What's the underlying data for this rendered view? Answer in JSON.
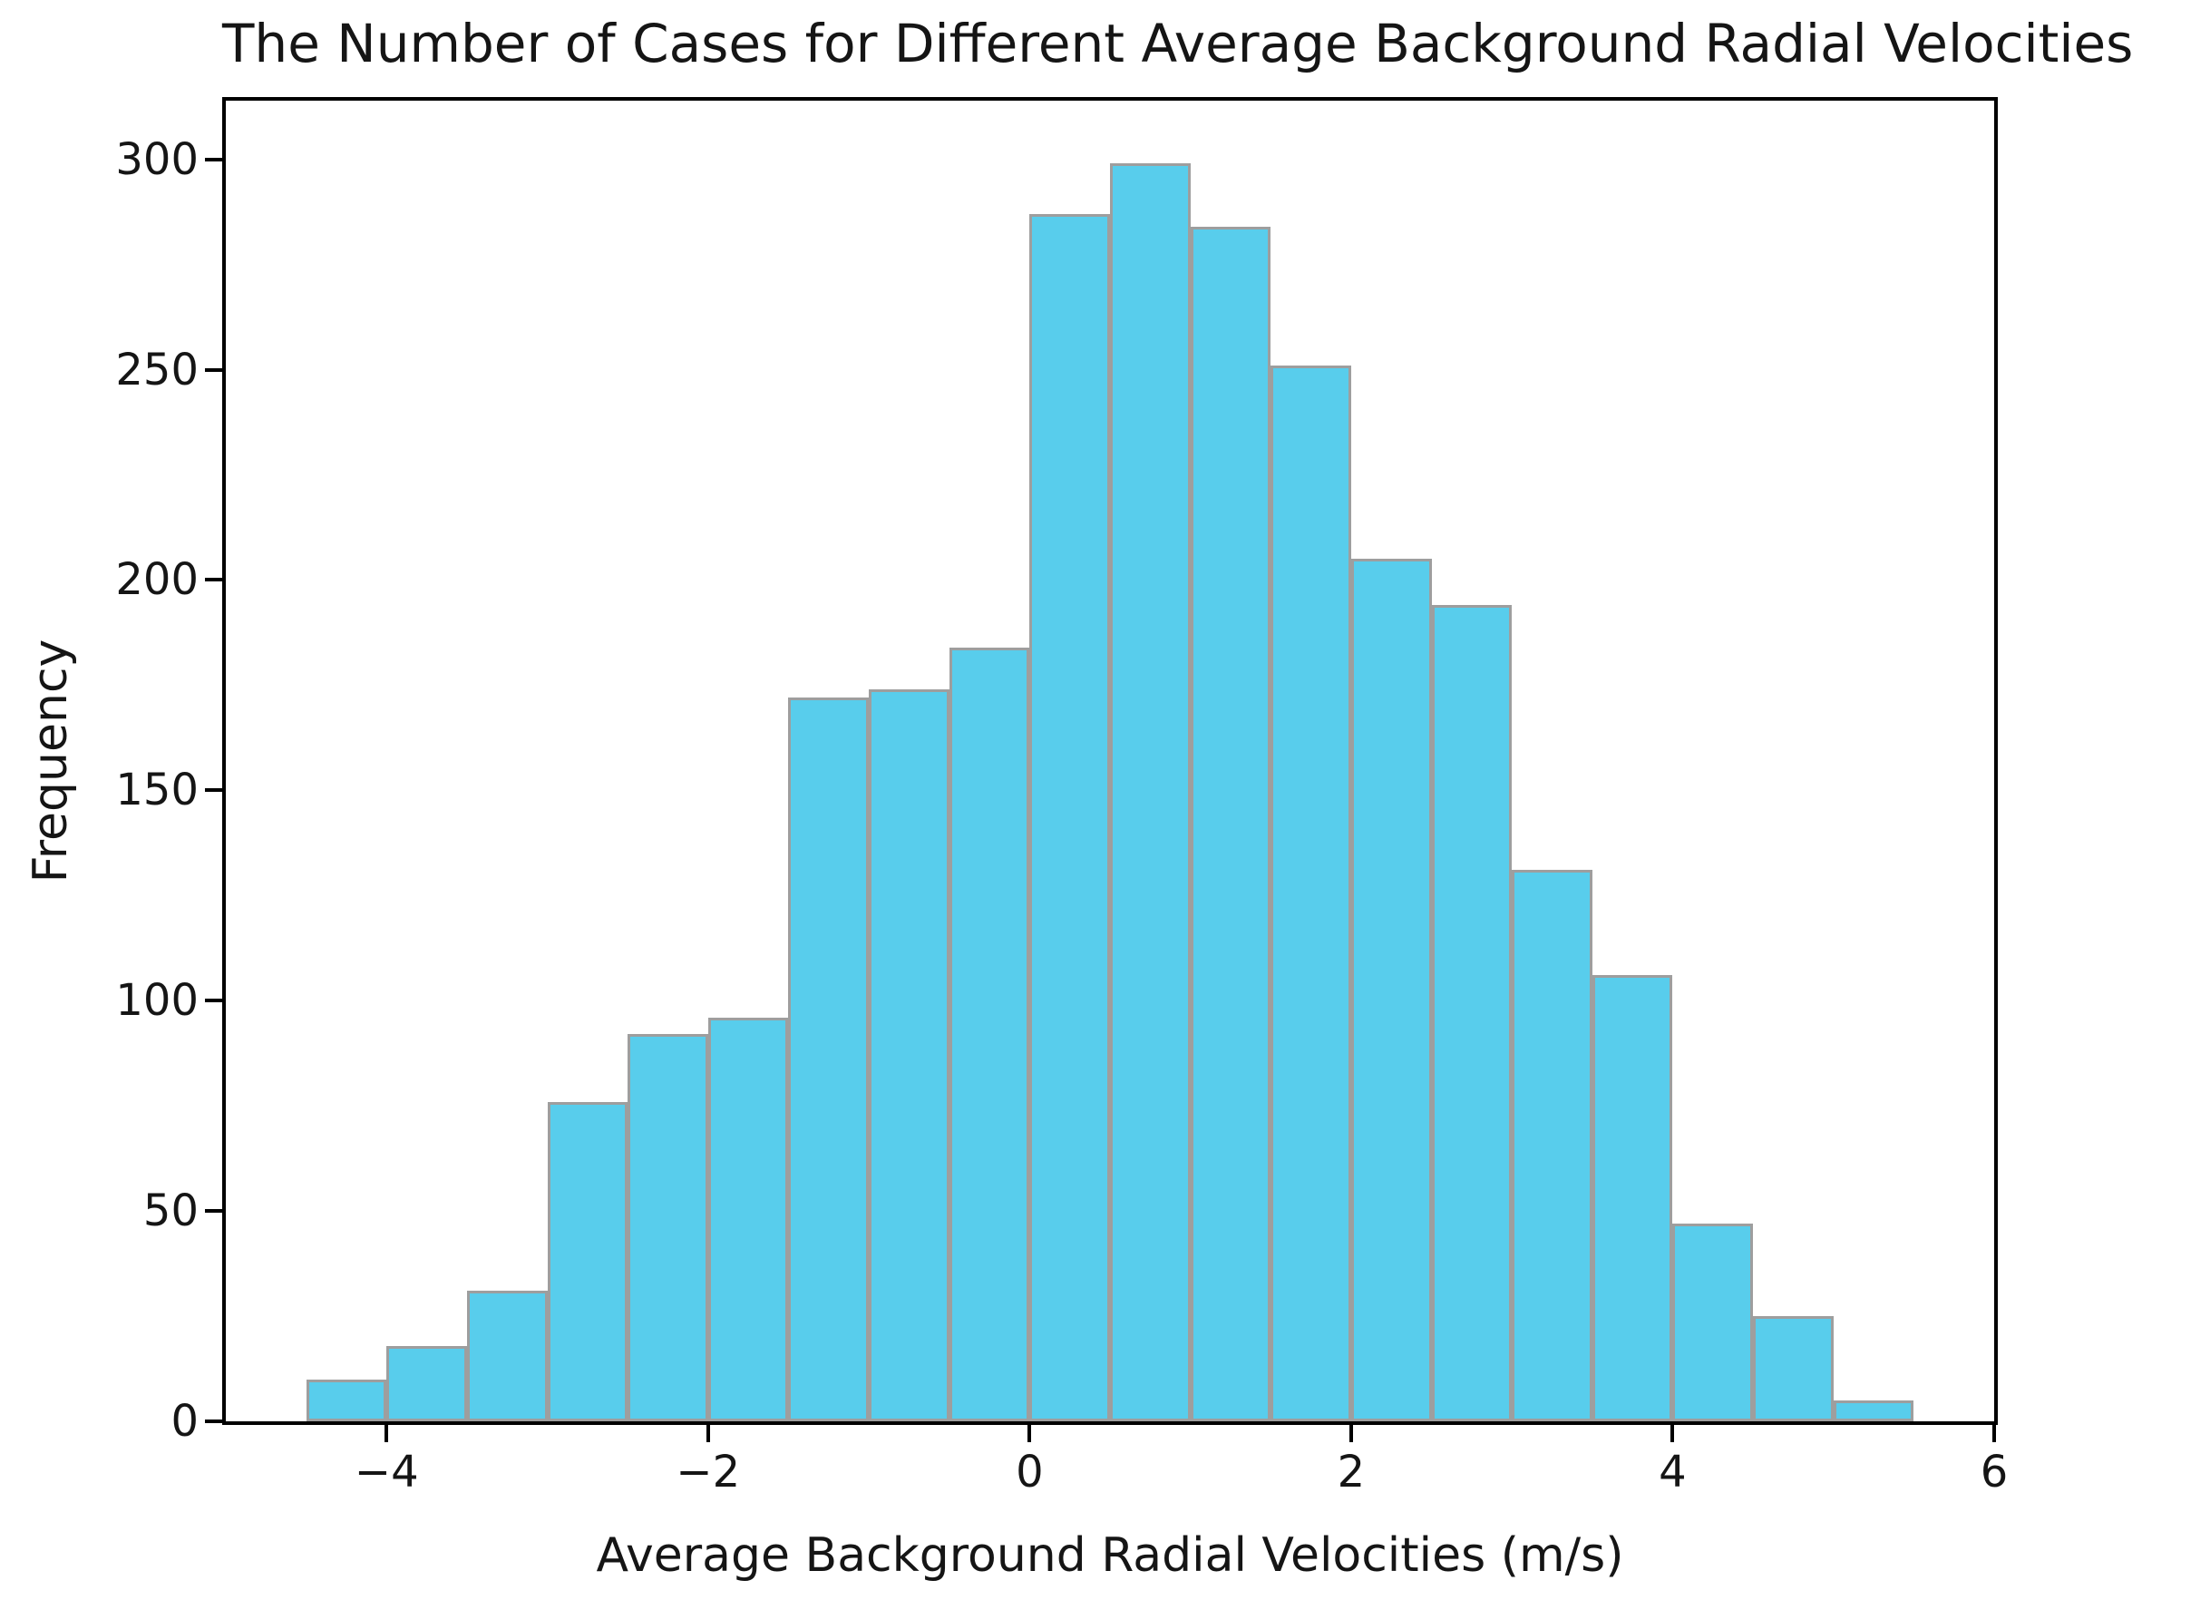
{
  "figure": {
    "background_color": "#ffffff",
    "text_color": "#151515",
    "spine_color": "#000000"
  },
  "chart_data": {
    "type": "bar",
    "subtype": "histogram",
    "title": "The Number of Cases for Different Average Background Radial Velocities",
    "xlabel": "Average Background Radial Velocities (m/s)",
    "ylabel": "Frequency",
    "bin_edges": [
      -4.5,
      -4.0,
      -3.5,
      -3.0,
      -2.5,
      -2.0,
      -1.5,
      -1.0,
      -0.5,
      0.0,
      0.5,
      1.0,
      1.5,
      2.0,
      2.5,
      3.0,
      3.5,
      4.0,
      4.5,
      5.0,
      5.5
    ],
    "frequencies": [
      10,
      18,
      31,
      76,
      92,
      96,
      172,
      174,
      184,
      287,
      299,
      284,
      251,
      205,
      194,
      131,
      106,
      47,
      25,
      5
    ],
    "xlim": [
      -5.0,
      6.0
    ],
    "ylim": [
      0,
      313.95
    ],
    "x_ticks": [
      -4,
      -2,
      0,
      2,
      4,
      6
    ],
    "x_tick_labels": [
      "−4",
      "−2",
      "0",
      "2",
      "4",
      "6"
    ],
    "y_ticks": [
      0,
      50,
      100,
      150,
      200,
      250,
      300
    ],
    "y_tick_labels": [
      "0",
      "50",
      "100",
      "150",
      "200",
      "250",
      "300"
    ],
    "grid": false,
    "legend": null,
    "bar_color": "#58cdec",
    "bar_edge_color": "#9e9e9e"
  }
}
